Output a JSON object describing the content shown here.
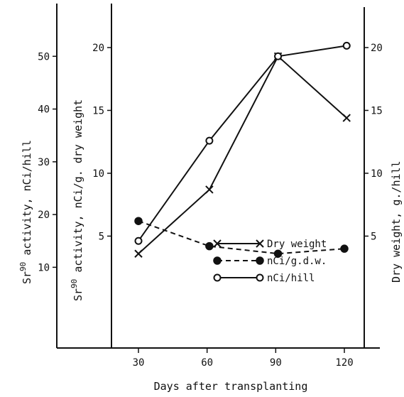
{
  "chart_data": {
    "type": "line",
    "title": "",
    "xlabel": "Days after transplanting",
    "x_ticks": [
      "30",
      "60",
      "90",
      "120"
    ],
    "xlim": [
      15,
      135
    ],
    "axes": {
      "left_outer": {
        "title_prefix": "Sr",
        "title_superscript": "90",
        "title_rest": " activity, nCi/hill",
        "ticks": [
          "10",
          "20",
          "30",
          "40",
          "50"
        ],
        "ylim": [
          -5.3,
          60
        ]
      },
      "left_inner": {
        "title_prefix": "Sr",
        "title_superscript": "90",
        "title_rest": " activity, nCi/g. dry weight",
        "ticks": [
          "5",
          "10",
          "15",
          "20"
        ],
        "ylim": [
          -3.9,
          23.5
        ]
      },
      "right": {
        "title": "Dry weight, g./hill",
        "ticks": [
          "5",
          "10",
          "15",
          "20"
        ],
        "ylim": [
          -3.9,
          23.5
        ]
      }
    },
    "legend_position": "right",
    "series": [
      {
        "name": "Dry weight",
        "axis": "right",
        "marker": "x",
        "dash": "solid",
        "x": [
          30,
          61,
          91,
          121
        ],
        "y": [
          3.6,
          8.7,
          19.3,
          14.4
        ]
      },
      {
        "name": "nCi/g.d.w.",
        "axis": "left_inner",
        "marker": "filled-circle",
        "dash": "dashed",
        "x": [
          30,
          61,
          91,
          120
        ],
        "y": [
          6.2,
          4.2,
          3.6,
          4.0
        ]
      },
      {
        "name": "nCi/hill",
        "axis": "left_outer",
        "marker": "open-circle",
        "dash": "solid",
        "x": [
          30,
          61,
          91,
          121
        ],
        "y": [
          15,
          34,
          50,
          52
        ]
      }
    ]
  },
  "colors": {
    "ink": "#111111",
    "background": "#ffffff"
  }
}
